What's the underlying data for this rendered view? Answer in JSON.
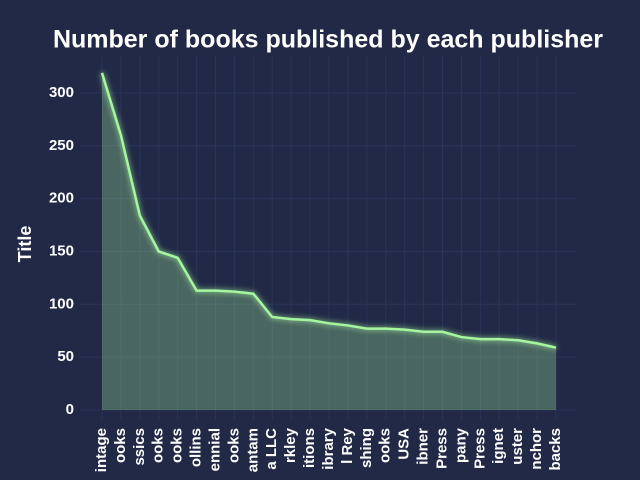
{
  "chart_data": {
    "type": "area",
    "title": "Number of books published by each publisher",
    "y_label": "Title",
    "categories": [
      "intage",
      "ooks",
      "ssics",
      "ooks",
      "ooks",
      "ollins",
      "ennial",
      "ooks",
      "antam",
      "a LLC",
      "rkley",
      "itions",
      "ibrary",
      "l Rey",
      "shing",
      "ooks",
      "USA",
      "ibner",
      "Press",
      "pany",
      "Press",
      "ignet",
      "uster",
      "nchor",
      "backs"
    ],
    "values": [
      319,
      260,
      184,
      150,
      144,
      113,
      113,
      112,
      110,
      88,
      86,
      85,
      82,
      80,
      77,
      77,
      76,
      74,
      74,
      69,
      67,
      67,
      66,
      63,
      59
    ],
    "color": "#a6f59f",
    "ylim": [
      -9.5,
      335
    ],
    "yticks": [
      0,
      50,
      100,
      150,
      200,
      250,
      300
    ],
    "grid": true
  }
}
